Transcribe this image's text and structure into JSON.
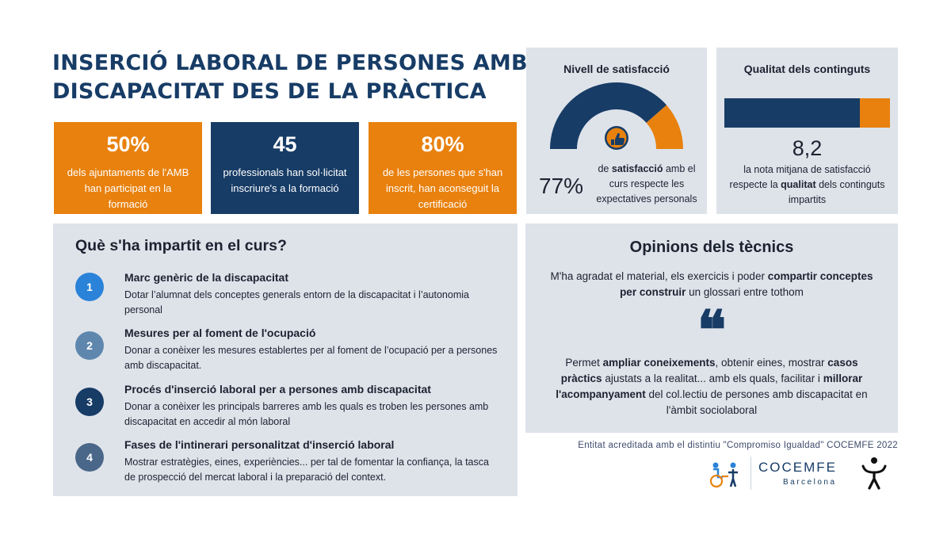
{
  "title": {
    "line1": "INSERCIÓ LABORAL DE PERSONES AMB",
    "line2": "DISCAPACITAT DES DE LA PRÀCTICA"
  },
  "stats": [
    {
      "value": "50%",
      "desc": "dels ajuntaments de l'AMB han participat en la formació",
      "color": "#e8810e"
    },
    {
      "value": "45",
      "desc": "professionals han sol·licitat inscriure's a la formació",
      "color": "#173c66"
    },
    {
      "value": "80%",
      "desc": "de les persones que s'han inscrit, han aconseguit la certificació",
      "color": "#e8810e"
    }
  ],
  "satisfaction": {
    "title": "Nivell de satisfacció",
    "percent_label": "77%",
    "gauge_fraction": 0.77,
    "desc_bold": "satisfacció",
    "desc_before": "de ",
    "desc_after": " amb el curs respecte les expectatives personals",
    "icon": "thumbs-up-icon"
  },
  "quality": {
    "title": "Qualitat dels continguts",
    "score": "8,2",
    "bar_fraction": 0.82,
    "desc_before": "la nota mitjana de satisfacció respecte la ",
    "desc_bold": "qualitat",
    "desc_after": " dels continguts impartits"
  },
  "course": {
    "heading": "Què s'ha impartit en el curs?",
    "items": [
      {
        "num": "1",
        "color": "#2a83d8",
        "title": "Marc genèric de la discapacitat",
        "desc": "Dotar l’alumnat dels conceptes generals entorn de la discapacitat i l’autonomia personal"
      },
      {
        "num": "2",
        "color": "#5f87ad",
        "title": "Mesures per al foment de l'ocupació",
        "desc": "Donar a conèixer  les mesures establertes per al foment de l’ocupació per a persones amb discapacitat."
      },
      {
        "num": "3",
        "color": "#173c66",
        "title": "Procés d'inserció laboral per a persones amb discapacitat",
        "desc": "Donar a conèixer les principals barreres amb les quals es troben les persones amb discapacitat en accedir al món laboral"
      },
      {
        "num": "4",
        "color": "#4a6789",
        "title": "Fases de l'intinerari personalitzat d'inserció laboral",
        "desc": "Mostrar estratègies, eines, experiències... per tal de fomentar la confiança, la tasca de prospecció del mercat laboral i la preparació del context."
      }
    ]
  },
  "opinions": {
    "heading": "Opinions dels tècnics",
    "quote1": {
      "a": "M'ha agradat el material, els exercicis i poder ",
      "b": "compartir conceptes per construir",
      "c": " un glossari entre tothom"
    },
    "quote_mark": "❝",
    "quote2": {
      "a": "Permet ",
      "b": "ampliar coneixements",
      "c": ", obtenir eines, mostrar ",
      "d": "casos pràctics",
      "e": " ajustats a la realitat... amb els quals, facilitar i ",
      "f": "millorar l'acompanyament",
      "g": " del col.lectiu de persones amb discapacitat en l'àmbit sociolaboral"
    }
  },
  "footer": {
    "accreditation": "Entitat acreditada amb el distintiu \"Compromiso Igualdad\" COCEMFE 2022",
    "logo_name": "COCEMFE",
    "logo_sub": "Barcelona",
    "logo_icon": "wheelchair-people-icon",
    "person_icon": "accessibility-person-icon"
  }
}
